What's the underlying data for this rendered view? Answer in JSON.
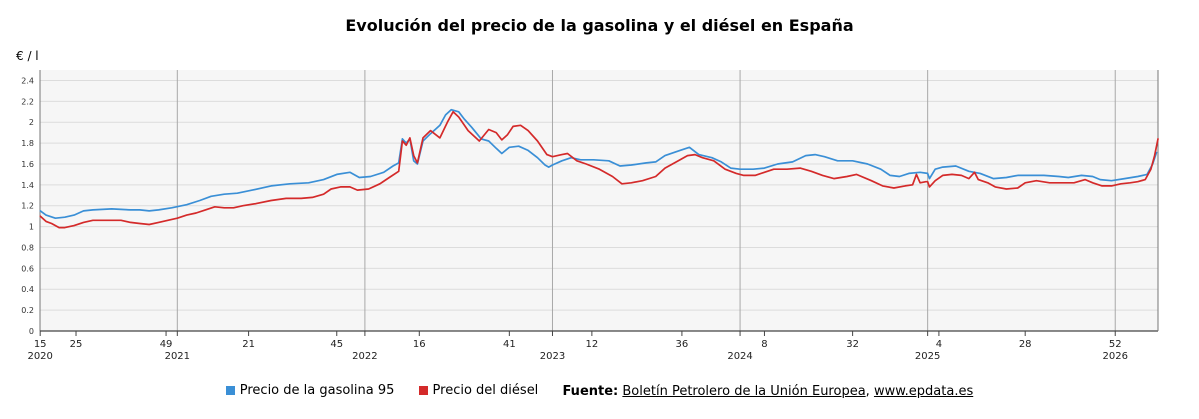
{
  "chart_data": {
    "type": "line",
    "title": "Evolución del precio de la gasolina y el diésel en España",
    "ylabel": "€ / l",
    "ylim": [
      0,
      2.5
    ],
    "yticks": [
      0,
      0.2,
      0.4,
      0.6,
      0.8,
      1,
      1.2,
      1.4,
      1.6,
      1.8,
      2,
      2.2,
      2.4
    ],
    "ytick_labels": [
      "0",
      "0.2",
      "0.4",
      "0.6",
      "0.8",
      "1",
      "1.2",
      "1.4",
      "1.6",
      "1.8",
      "2",
      "2.2",
      "2.4"
    ],
    "xlim": [
      2020.268,
      2026.228
    ],
    "xticks": [
      {
        "x": 2020.269,
        "week": "15",
        "year": "2020"
      },
      {
        "x": 2020.46,
        "week": "25",
        "year": ""
      },
      {
        "x": 2020.94,
        "week": "49",
        "year": ""
      },
      {
        "x": 2021.0,
        "week": "",
        "year": "2021"
      },
      {
        "x": 2021.38,
        "week": "21",
        "year": ""
      },
      {
        "x": 2021.85,
        "week": "45",
        "year": ""
      },
      {
        "x": 2022.0,
        "week": "",
        "year": "2022"
      },
      {
        "x": 2022.29,
        "week": "16",
        "year": ""
      },
      {
        "x": 2022.77,
        "week": "41",
        "year": ""
      },
      {
        "x": 2023.0,
        "week": "",
        "year": "2023"
      },
      {
        "x": 2023.21,
        "week": "12",
        "year": ""
      },
      {
        "x": 2023.69,
        "week": "36",
        "year": ""
      },
      {
        "x": 2024.0,
        "week": "",
        "year": "2024"
      },
      {
        "x": 2024.13,
        "week": "8",
        "year": ""
      },
      {
        "x": 2024.6,
        "week": "32",
        "year": ""
      },
      {
        "x": 2025.0,
        "week": "",
        "year": "2025"
      },
      {
        "x": 2025.06,
        "week": "4",
        "year": ""
      },
      {
        "x": 2025.52,
        "week": "28",
        "year": ""
      },
      {
        "x": 2026.0,
        "week": "52",
        "year": "2026"
      }
    ],
    "year_dividers": [
      2021.0,
      2022.0,
      2023.0,
      2024.0,
      2025.0,
      2026.0
    ],
    "grid": true,
    "legend_position": "bottom",
    "series": [
      {
        "name": "Precio de la gasolina 95",
        "color": "#3a8fd6",
        "points": [
          [
            2020.27,
            1.15
          ],
          [
            2020.3,
            1.11
          ],
          [
            2020.35,
            1.08
          ],
          [
            2020.4,
            1.09
          ],
          [
            2020.45,
            1.11
          ],
          [
            2020.5,
            1.15
          ],
          [
            2020.55,
            1.16
          ],
          [
            2020.65,
            1.17
          ],
          [
            2020.75,
            1.16
          ],
          [
            2020.8,
            1.16
          ],
          [
            2020.85,
            1.15
          ],
          [
            2020.9,
            1.16
          ],
          [
            2020.97,
            1.18
          ],
          [
            2021.05,
            1.21
          ],
          [
            2021.12,
            1.25
          ],
          [
            2021.18,
            1.29
          ],
          [
            2021.25,
            1.31
          ],
          [
            2021.32,
            1.32
          ],
          [
            2021.4,
            1.35
          ],
          [
            2021.5,
            1.39
          ],
          [
            2021.6,
            1.41
          ],
          [
            2021.7,
            1.42
          ],
          [
            2021.78,
            1.45
          ],
          [
            2021.85,
            1.5
          ],
          [
            2021.92,
            1.52
          ],
          [
            2021.97,
            1.47
          ],
          [
            2022.03,
            1.48
          ],
          [
            2022.1,
            1.52
          ],
          [
            2022.15,
            1.58
          ],
          [
            2022.18,
            1.61
          ],
          [
            2022.2,
            1.84
          ],
          [
            2022.22,
            1.8
          ],
          [
            2022.24,
            1.84
          ],
          [
            2022.26,
            1.63
          ],
          [
            2022.28,
            1.6
          ],
          [
            2022.31,
            1.82
          ],
          [
            2022.35,
            1.89
          ],
          [
            2022.4,
            1.97
          ],
          [
            2022.43,
            2.07
          ],
          [
            2022.46,
            2.12
          ],
          [
            2022.5,
            2.1
          ],
          [
            2022.53,
            2.03
          ],
          [
            2022.57,
            1.95
          ],
          [
            2022.62,
            1.84
          ],
          [
            2022.66,
            1.82
          ],
          [
            2022.7,
            1.75
          ],
          [
            2022.73,
            1.7
          ],
          [
            2022.77,
            1.76
          ],
          [
            2022.82,
            1.77
          ],
          [
            2022.87,
            1.73
          ],
          [
            2022.92,
            1.66
          ],
          [
            2022.96,
            1.59
          ],
          [
            2022.98,
            1.57
          ],
          [
            2023.0,
            1.59
          ],
          [
            2023.05,
            1.63
          ],
          [
            2023.1,
            1.66
          ],
          [
            2023.15,
            1.64
          ],
          [
            2023.22,
            1.64
          ],
          [
            2023.3,
            1.63
          ],
          [
            2023.36,
            1.58
          ],
          [
            2023.42,
            1.59
          ],
          [
            2023.5,
            1.61
          ],
          [
            2023.55,
            1.62
          ],
          [
            2023.6,
            1.68
          ],
          [
            2023.68,
            1.73
          ],
          [
            2023.73,
            1.76
          ],
          [
            2023.78,
            1.69
          ],
          [
            2023.85,
            1.66
          ],
          [
            2023.9,
            1.62
          ],
          [
            2023.95,
            1.56
          ],
          [
            2024.0,
            1.55
          ],
          [
            2024.07,
            1.55
          ],
          [
            2024.13,
            1.56
          ],
          [
            2024.2,
            1.6
          ],
          [
            2024.28,
            1.62
          ],
          [
            2024.35,
            1.68
          ],
          [
            2024.4,
            1.69
          ],
          [
            2024.45,
            1.67
          ],
          [
            2024.52,
            1.63
          ],
          [
            2024.6,
            1.63
          ],
          [
            2024.68,
            1.6
          ],
          [
            2024.75,
            1.55
          ],
          [
            2024.8,
            1.49
          ],
          [
            2024.85,
            1.48
          ],
          [
            2024.9,
            1.51
          ],
          [
            2024.96,
            1.52
          ],
          [
            2025.0,
            1.51
          ],
          [
            2025.01,
            1.46
          ],
          [
            2025.04,
            1.55
          ],
          [
            2025.08,
            1.57
          ],
          [
            2025.15,
            1.58
          ],
          [
            2025.22,
            1.53
          ],
          [
            2025.28,
            1.51
          ],
          [
            2025.35,
            1.46
          ],
          [
            2025.42,
            1.47
          ],
          [
            2025.48,
            1.49
          ],
          [
            2025.55,
            1.49
          ],
          [
            2025.62,
            1.49
          ],
          [
            2025.7,
            1.48
          ],
          [
            2025.75,
            1.47
          ],
          [
            2025.82,
            1.49
          ],
          [
            2025.88,
            1.48
          ],
          [
            2025.92,
            1.45
          ],
          [
            2025.98,
            1.44
          ],
          [
            2026.05,
            1.46
          ],
          [
            2026.12,
            1.48
          ],
          [
            2026.17,
            1.5
          ],
          [
            2026.2,
            1.6
          ],
          [
            2026.22,
            1.71
          ]
        ]
      },
      {
        "name": "Precio del diésel",
        "color": "#d42a2a",
        "points": [
          [
            2020.27,
            1.1
          ],
          [
            2020.3,
            1.05
          ],
          [
            2020.33,
            1.03
          ],
          [
            2020.37,
            0.99
          ],
          [
            2020.4,
            0.99
          ],
          [
            2020.45,
            1.01
          ],
          [
            2020.5,
            1.04
          ],
          [
            2020.55,
            1.06
          ],
          [
            2020.6,
            1.06
          ],
          [
            2020.7,
            1.06
          ],
          [
            2020.75,
            1.04
          ],
          [
            2020.8,
            1.03
          ],
          [
            2020.85,
            1.02
          ],
          [
            2020.9,
            1.04
          ],
          [
            2020.95,
            1.06
          ],
          [
            2021.0,
            1.08
          ],
          [
            2021.05,
            1.11
          ],
          [
            2021.1,
            1.13
          ],
          [
            2021.15,
            1.16
          ],
          [
            2021.2,
            1.19
          ],
          [
            2021.25,
            1.18
          ],
          [
            2021.3,
            1.18
          ],
          [
            2021.35,
            1.2
          ],
          [
            2021.42,
            1.22
          ],
          [
            2021.5,
            1.25
          ],
          [
            2021.58,
            1.27
          ],
          [
            2021.66,
            1.27
          ],
          [
            2021.72,
            1.28
          ],
          [
            2021.78,
            1.31
          ],
          [
            2021.82,
            1.36
          ],
          [
            2021.87,
            1.38
          ],
          [
            2021.92,
            1.38
          ],
          [
            2021.96,
            1.35
          ],
          [
            2022.02,
            1.36
          ],
          [
            2022.08,
            1.41
          ],
          [
            2022.13,
            1.47
          ],
          [
            2022.18,
            1.53
          ],
          [
            2022.2,
            1.82
          ],
          [
            2022.22,
            1.78
          ],
          [
            2022.24,
            1.85
          ],
          [
            2022.26,
            1.68
          ],
          [
            2022.28,
            1.61
          ],
          [
            2022.31,
            1.85
          ],
          [
            2022.35,
            1.92
          ],
          [
            2022.4,
            1.85
          ],
          [
            2022.44,
            2.0
          ],
          [
            2022.47,
            2.1
          ],
          [
            2022.5,
            2.05
          ],
          [
            2022.55,
            1.92
          ],
          [
            2022.61,
            1.82
          ],
          [
            2022.66,
            1.93
          ],
          [
            2022.7,
            1.9
          ],
          [
            2022.73,
            1.83
          ],
          [
            2022.76,
            1.88
          ],
          [
            2022.79,
            1.96
          ],
          [
            2022.83,
            1.97
          ],
          [
            2022.87,
            1.92
          ],
          [
            2022.92,
            1.82
          ],
          [
            2022.97,
            1.69
          ],
          [
            2023.0,
            1.67
          ],
          [
            2023.05,
            1.69
          ],
          [
            2023.08,
            1.7
          ],
          [
            2023.13,
            1.63
          ],
          [
            2023.18,
            1.6
          ],
          [
            2023.25,
            1.55
          ],
          [
            2023.32,
            1.48
          ],
          [
            2023.37,
            1.41
          ],
          [
            2023.42,
            1.42
          ],
          [
            2023.48,
            1.44
          ],
          [
            2023.55,
            1.48
          ],
          [
            2023.6,
            1.56
          ],
          [
            2023.66,
            1.62
          ],
          [
            2023.72,
            1.68
          ],
          [
            2023.76,
            1.69
          ],
          [
            2023.8,
            1.66
          ],
          [
            2023.86,
            1.63
          ],
          [
            2023.92,
            1.55
          ],
          [
            2023.98,
            1.51
          ],
          [
            2024.02,
            1.49
          ],
          [
            2024.08,
            1.49
          ],
          [
            2024.13,
            1.52
          ],
          [
            2024.18,
            1.55
          ],
          [
            2024.25,
            1.55
          ],
          [
            2024.32,
            1.56
          ],
          [
            2024.38,
            1.53
          ],
          [
            2024.44,
            1.49
          ],
          [
            2024.5,
            1.46
          ],
          [
            2024.57,
            1.48
          ],
          [
            2024.62,
            1.5
          ],
          [
            2024.7,
            1.44
          ],
          [
            2024.76,
            1.39
          ],
          [
            2024.82,
            1.37
          ],
          [
            2024.88,
            1.39
          ],
          [
            2024.92,
            1.4
          ],
          [
            2024.94,
            1.5
          ],
          [
            2024.96,
            1.42
          ],
          [
            2024.99,
            1.43
          ],
          [
            2025.0,
            1.43
          ],
          [
            2025.01,
            1.38
          ],
          [
            2025.04,
            1.44
          ],
          [
            2025.08,
            1.49
          ],
          [
            2025.13,
            1.5
          ],
          [
            2025.18,
            1.49
          ],
          [
            2025.22,
            1.46
          ],
          [
            2025.25,
            1.52
          ],
          [
            2025.27,
            1.45
          ],
          [
            2025.32,
            1.42
          ],
          [
            2025.36,
            1.38
          ],
          [
            2025.42,
            1.36
          ],
          [
            2025.48,
            1.37
          ],
          [
            2025.52,
            1.42
          ],
          [
            2025.58,
            1.44
          ],
          [
            2025.65,
            1.42
          ],
          [
            2025.72,
            1.42
          ],
          [
            2025.78,
            1.42
          ],
          [
            2025.84,
            1.45
          ],
          [
            2025.88,
            1.42
          ],
          [
            2025.93,
            1.39
          ],
          [
            2025.98,
            1.39
          ],
          [
            2026.03,
            1.41
          ],
          [
            2026.08,
            1.42
          ],
          [
            2026.12,
            1.43
          ],
          [
            2026.16,
            1.45
          ],
          [
            2026.19,
            1.55
          ],
          [
            2026.21,
            1.68
          ],
          [
            2026.228,
            1.84
          ]
        ]
      }
    ]
  },
  "legend": {
    "gasoline_label": "Precio de la gasolina 95",
    "diesel_label": "Precio del diésel",
    "source_label": "Fuente:",
    "source_link": "Boletín Petrolero de la Unión Europea",
    "separator": ",",
    "site_link": "www.epdata.es",
    "gasoline_color": "#3a8fd6",
    "diesel_color": "#d42a2a"
  }
}
